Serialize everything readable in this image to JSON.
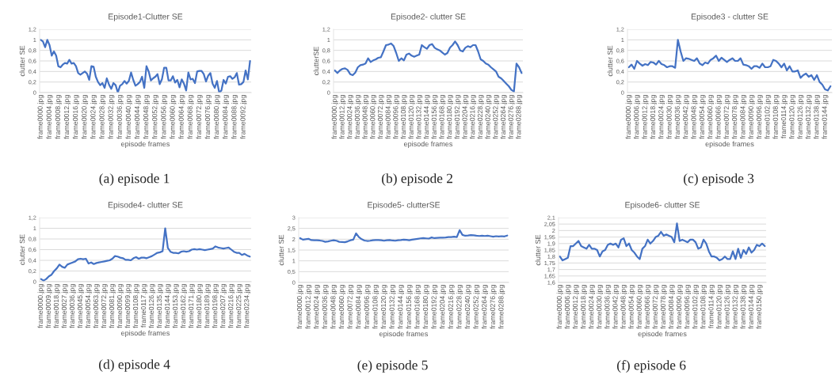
{
  "chart_data": [
    {
      "type": "line",
      "title": "Episode1-Clutter SE",
      "xlabel": "episode frames",
      "ylabel": "clutter SE",
      "annotations": [
        "(a) episode 1"
      ],
      "grid": "y",
      "ylim": [
        0,
        1.2
      ],
      "yticks": [
        0,
        {
          "value": 0.2,
          "label": "0,2"
        },
        {
          "value": 0.4,
          "label": "0,4"
        },
        {
          "value": 0.6,
          "label": "0,6"
        },
        {
          "value": 0.8,
          "label": "0,8"
        },
        1,
        {
          "value": 1.2,
          "label": "1,2"
        }
      ],
      "categories": [
        "frame0000.jpg",
        null,
        null,
        null,
        "frame0004.jpg",
        null,
        null,
        null,
        "frame0008.jpg",
        null,
        null,
        null,
        "frame0012.jpg",
        null,
        null,
        null,
        "frame0016.jpg",
        null,
        null,
        null,
        "frame0020.jpg",
        null,
        null,
        null,
        "frame0024.jpg",
        null,
        null,
        null,
        "frame0028.jpg",
        null,
        null,
        null,
        "frame0032.jpg",
        null,
        null,
        null,
        "frame0036.jpg",
        null,
        null,
        null,
        "frame0040.jpg",
        null,
        null,
        null,
        "frame0044.jpg",
        null,
        null,
        null,
        "frame0048.jpg",
        null,
        null,
        null,
        "frame0052.jpg",
        null,
        null,
        null,
        "frame0056.jpg",
        null,
        null,
        null,
        "frame0060.jpg",
        null,
        null,
        null,
        "frame0064.jpg",
        null,
        null,
        null,
        "frame0068.jpg",
        null,
        null,
        null,
        "frame0072.jpg",
        null,
        null,
        null,
        "frame0076.jpg",
        null,
        null,
        null,
        "frame0080.jpg",
        null,
        null,
        null,
        "frame0084.jpg",
        null,
        null,
        null,
        "frame0088.jpg",
        null,
        null,
        null,
        "frame0092.jpg",
        null,
        null,
        null
      ],
      "series": [
        {
          "color": "#4472c4",
          "values": [
            1.0,
            0.97,
            0.86,
            1.0,
            0.9,
            0.7,
            0.78,
            0.7,
            0.5,
            0.48,
            0.53,
            0.56,
            0.55,
            0.62,
            0.55,
            0.56,
            0.5,
            0.37,
            0.34,
            0.37,
            0.4,
            0.36,
            0.24,
            0.5,
            0.49,
            0.3,
            0.2,
            0.14,
            0.18,
            0.09,
            0.27,
            0.15,
            0.07,
            0.18,
            0.14,
            0.0,
            0.13,
            0.16,
            0.22,
            0.17,
            0.22,
            0.38,
            0.24,
            0.13,
            0.16,
            0.2,
            0.3,
            0.09,
            0.5,
            0.4,
            0.23,
            0.27,
            0.3,
            0.35,
            0.16,
            0.25,
            0.47,
            0.47,
            0.23,
            0.23,
            0.31,
            0.19,
            0.24,
            0.1,
            0.25,
            0.17,
            0.04,
            0.38,
            0.25,
            0.26,
            0.18,
            0.4,
            0.41,
            0.41,
            0.35,
            0.21,
            0.32,
            0.37,
            0.17,
            0.09,
            0.22,
            0.0,
            0.04,
            0.24,
            0.17,
            0.3,
            0.31,
            0.26,
            0.29,
            0.37,
            0.15,
            0.16,
            0.2,
            0.42,
            0.25,
            0.6
          ]
        }
      ]
    },
    {
      "type": "line",
      "title": "Episode2- clutter SE",
      "xlabel": "episode frames",
      "ylabel": "clutterSE",
      "annotations": [
        "(b) episode 2"
      ],
      "grid": "y",
      "ylim": [
        0,
        1.2
      ],
      "yticks": [
        0,
        {
          "value": 0.2,
          "label": "0,2"
        },
        {
          "value": 0.4,
          "label": "0,4"
        },
        {
          "value": 0.6,
          "label": "0,6"
        },
        {
          "value": 0.8,
          "label": "0,8"
        },
        1,
        {
          "value": 1.2,
          "label": "1,2"
        }
      ],
      "categories": [
        "frame0000.jpg",
        null,
        null,
        "frame0012.jpg",
        null,
        null,
        "frame0024.jpg",
        null,
        null,
        "frame0036.jpg",
        null,
        null,
        "frame0048.jpg",
        null,
        null,
        "frame0060.jpg",
        null,
        null,
        "frame0072.jpg",
        null,
        null,
        "frame0084.jpg",
        null,
        null,
        "frame0096.jpg",
        null,
        null,
        "frame0108.jpg",
        null,
        null,
        "frame0120.jpg",
        null,
        null,
        "frame0132.jpg",
        null,
        null,
        "frame0144.jpg",
        null,
        null,
        "frame0156.jpg",
        null,
        null,
        "frame0168.jpg",
        null,
        null,
        "frame0180.jpg",
        null,
        null,
        "frame0192.jpg",
        null,
        null,
        "frame0204.jpg",
        null,
        null,
        "frame0216.jpg",
        null,
        null,
        "frame0228.jpg",
        null,
        null,
        "frame0240.jpg",
        null,
        null,
        "frame0252.jpg",
        null,
        null,
        "frame0264.jpg",
        null,
        null,
        "frame0276.jpg",
        null,
        null,
        "frame0288.jpg",
        null
      ],
      "series": [
        {
          "color": "#4472c4",
          "values": [
            0.42,
            0.37,
            0.42,
            0.45,
            0.46,
            0.43,
            0.35,
            0.33,
            0.38,
            0.48,
            0.52,
            0.53,
            0.55,
            0.65,
            0.58,
            0.61,
            0.63,
            0.66,
            0.67,
            0.78,
            0.9,
            0.91,
            0.93,
            0.88,
            0.75,
            0.6,
            0.65,
            0.61,
            0.72,
            0.74,
            0.7,
            0.68,
            0.7,
            0.72,
            0.9,
            0.86,
            0.83,
            0.9,
            0.92,
            0.85,
            0.82,
            0.8,
            0.76,
            0.72,
            0.75,
            0.85,
            0.9,
            0.97,
            0.9,
            0.8,
            0.78,
            0.85,
            0.88,
            0.86,
            0.9,
            0.9,
            0.78,
            0.63,
            0.6,
            0.55,
            0.53,
            0.48,
            0.44,
            0.4,
            0.3,
            0.27,
            0.22,
            0.17,
            0.12,
            0.05,
            0.02,
            0.55,
            0.48,
            0.37
          ]
        }
      ]
    },
    {
      "type": "line",
      "title": "Episode3 - clutter SE",
      "xlabel": "episode frames",
      "ylabel": "clutter SE",
      "annotations": [
        "(c) episode 3"
      ],
      "grid": "y",
      "ylim": [
        0,
        1.2
      ],
      "yticks": [
        0,
        {
          "value": 0.2,
          "label": "0,2"
        },
        {
          "value": 0.4,
          "label": "0,4"
        },
        {
          "value": 0.6,
          "label": "0,6"
        },
        {
          "value": 0.8,
          "label": "0,8"
        },
        1,
        {
          "value": 1.2,
          "label": "1,2"
        }
      ],
      "categories": [
        "frame0000.jpg",
        null,
        null,
        "frame0006.jpg",
        null,
        null,
        "frame0012.jpg",
        null,
        null,
        "frame0018.jpg",
        null,
        null,
        "frame0024.jpg",
        null,
        null,
        "frame0030.jpg",
        null,
        null,
        "frame0036.jpg",
        null,
        null,
        "frame0042.jpg",
        null,
        null,
        "frame0048.jpg",
        null,
        null,
        "frame0054.jpg",
        null,
        null,
        "frame0060.jpg",
        null,
        null,
        "frame0066.jpg",
        null,
        null,
        "frame0072.jpg",
        null,
        null,
        "frame0078.jpg",
        null,
        null,
        "frame0084.jpg",
        null,
        null,
        "frame0090.jpg",
        null,
        null,
        "frame0096.jpg",
        null,
        null,
        "frame0102.jpg",
        null,
        null,
        "frame0108.jpg",
        null,
        null,
        "frame0114.jpg",
        null,
        null,
        "frame0120.jpg",
        null,
        null,
        "frame0126.jpg",
        null,
        null,
        "frame0132.jpg",
        null,
        null,
        "frame0138.jpg",
        null,
        null,
        "frame0144.jpg",
        null,
        null
      ],
      "series": [
        {
          "color": "#4472c4",
          "values": [
            0.48,
            0.53,
            0.45,
            0.6,
            0.55,
            0.51,
            0.54,
            0.52,
            0.58,
            0.57,
            0.53,
            0.6,
            0.54,
            0.52,
            0.48,
            0.5,
            0.5,
            0.47,
            1.0,
            0.78,
            0.6,
            0.65,
            0.64,
            0.62,
            0.6,
            0.65,
            0.55,
            0.52,
            0.57,
            0.55,
            0.62,
            0.65,
            0.7,
            0.6,
            0.66,
            0.62,
            0.58,
            0.62,
            0.65,
            0.6,
            0.6,
            0.65,
            0.53,
            0.52,
            0.5,
            0.45,
            0.5,
            0.5,
            0.47,
            0.55,
            0.48,
            0.48,
            0.5,
            0.62,
            0.6,
            0.55,
            0.48,
            0.55,
            0.42,
            0.5,
            0.4,
            0.4,
            0.42,
            0.28,
            0.33,
            0.36,
            0.3,
            0.33,
            0.24,
            0.33,
            0.2,
            0.15,
            0.06,
            0.04,
            0.12
          ]
        }
      ]
    },
    {
      "type": "line",
      "title": "Episode4- clutter SE",
      "xlabel": "episode frames",
      "ylabel": "clutter SE",
      "annotations": [
        "(d) episode 4"
      ],
      "grid": "y",
      "ylim": [
        0,
        1.2
      ],
      "yticks": [
        0,
        {
          "value": 0.2,
          "label": "0,2"
        },
        {
          "value": 0.4,
          "label": "0,4"
        },
        {
          "value": 0.6,
          "label": "0,6"
        },
        {
          "value": 0.8,
          "label": "0,8"
        },
        1,
        {
          "value": 1.2,
          "label": "1,2"
        }
      ],
      "categories": [
        "frame0000.jpg",
        null,
        null,
        "frame0009.jpg",
        null,
        null,
        "frame0018.jpg",
        null,
        null,
        "frame0027.jpg",
        null,
        null,
        "frame0036.jpg",
        null,
        null,
        "frame0045.jpg",
        null,
        null,
        "frame0054.jpg",
        null,
        null,
        "frame0063.jpg",
        null,
        null,
        "frame0072.jpg",
        null,
        null,
        "frame0081.jpg",
        null,
        null,
        "frame0090.jpg",
        null,
        null,
        "frame0099.jpg",
        null,
        null,
        "frame0108.jpg",
        null,
        null,
        "frame0117.jpg",
        null,
        null,
        "frame0126.jpg",
        null,
        null,
        "frame0135.jpg",
        null,
        null,
        "frame0144.jpg",
        null,
        null,
        "frame0153.jpg",
        null,
        null,
        "frame0162.jpg",
        null,
        null,
        "frame0171.jpg",
        null,
        null,
        "frame0180.jpg",
        null,
        null,
        "frame0189.jpg",
        null,
        null,
        "frame0198.jpg",
        null,
        null,
        "frame0207.jpg",
        null,
        null,
        "frame0216.jpg",
        null,
        null,
        "frame0225.jpg",
        null,
        null,
        "frame0234.jpg",
        null
      ],
      "series": [
        {
          "color": "#4472c4",
          "values": [
            0.05,
            0.02,
            0.05,
            0.1,
            0.13,
            0.2,
            0.25,
            0.32,
            0.28,
            0.26,
            0.32,
            0.34,
            0.36,
            0.38,
            0.42,
            0.43,
            0.42,
            0.43,
            0.34,
            0.36,
            0.33,
            0.35,
            0.36,
            0.37,
            0.38,
            0.39,
            0.4,
            0.43,
            0.48,
            0.47,
            0.45,
            0.44,
            0.41,
            0.41,
            0.4,
            0.44,
            0.46,
            0.43,
            0.45,
            0.45,
            0.44,
            0.46,
            0.48,
            0.51,
            0.54,
            0.55,
            0.57,
            1.0,
            0.63,
            0.56,
            0.54,
            0.54,
            0.53,
            0.56,
            0.57,
            0.56,
            0.57,
            0.6,
            0.61,
            0.6,
            0.61,
            0.6,
            0.59,
            0.6,
            0.61,
            0.62,
            0.66,
            0.64,
            0.63,
            0.62,
            0.63,
            0.64,
            0.6,
            0.56,
            0.54,
            0.54,
            0.5,
            0.52,
            0.49,
            0.47
          ]
        }
      ]
    },
    {
      "type": "line",
      "title": "Episode5- clutterSE",
      "xlabel": "episode frames",
      "ylabel": "clutter SE",
      "annotations": [
        "(e) episode 5"
      ],
      "grid": "y",
      "ylim": [
        0,
        3
      ],
      "yticks": [
        0,
        {
          "value": 0.5,
          "label": "0,5"
        },
        1,
        {
          "value": 1.5,
          "label": "1,5"
        },
        2,
        {
          "value": 2.5,
          "label": "2,5"
        },
        3
      ],
      "categories": [
        "frame0000.jpg",
        null,
        null,
        "frame0012.jpg",
        null,
        null,
        "frame0024.jpg",
        null,
        null,
        "frame0036.jpg",
        null,
        null,
        "frame0048.jpg",
        null,
        null,
        "frame0060.jpg",
        null,
        null,
        "frame0072.jpg",
        null,
        null,
        "frame0084.jpg",
        null,
        null,
        "frame0096.jpg",
        null,
        null,
        "frame0108.jpg",
        null,
        null,
        "frame0120.jpg",
        null,
        null,
        "frame0132.jpg",
        null,
        null,
        "frame0144.jpg",
        null,
        null,
        "frame0156.jpg",
        null,
        null,
        "frame0168.jpg",
        null,
        null,
        "frame0180.jpg",
        null,
        null,
        "frame0192.jpg",
        null,
        null,
        "frame0204.jpg",
        null,
        null,
        "frame0216.jpg",
        null,
        null,
        "frame0228.jpg",
        null,
        null,
        "frame0240.jpg",
        null,
        null,
        "frame0252.jpg",
        null,
        null,
        "frame0264.jpg",
        null,
        null,
        "frame0276.jpg",
        null,
        null,
        "frame0288.jpg",
        null,
        null
      ],
      "series": [
        {
          "color": "#4472c4",
          "values": [
            2.05,
            1.98,
            2.0,
            2.02,
            1.96,
            1.95,
            1.95,
            1.94,
            1.92,
            1.88,
            1.9,
            1.93,
            1.95,
            1.93,
            1.88,
            1.87,
            1.86,
            1.9,
            1.95,
            1.98,
            2.27,
            2.1,
            2.0,
            1.94,
            1.92,
            1.93,
            1.95,
            1.96,
            1.96,
            1.95,
            1.93,
            1.95,
            1.96,
            1.94,
            1.93,
            1.95,
            1.96,
            1.98,
            1.97,
            1.95,
            1.98,
            2.0,
            2.02,
            2.04,
            2.05,
            2.04,
            2.03,
            2.08,
            2.05,
            2.06,
            2.07,
            2.07,
            2.08,
            2.1,
            2.1,
            2.12,
            2.1,
            2.42,
            2.2,
            2.16,
            2.17,
            2.19,
            2.18,
            2.16,
            2.15,
            2.16,
            2.15,
            2.16,
            2.14,
            2.12,
            2.14,
            2.13,
            2.14,
            2.13,
            2.17
          ]
        }
      ]
    },
    {
      "type": "line",
      "title": "Episode6- clutter SE",
      "xlabel": "episode frames",
      "ylabel": "clutter SE",
      "annotations": [
        "(f) episode 6"
      ],
      "grid": "y",
      "ylim": [
        1.6,
        2.1
      ],
      "yticks": [
        {
          "value": 1.6,
          "label": "1,6"
        },
        {
          "value": 1.65,
          "label": "1,65"
        },
        {
          "value": 1.7,
          "label": "1,7"
        },
        {
          "value": 1.75,
          "label": "1,75"
        },
        {
          "value": 1.8,
          "label": "1,8"
        },
        {
          "value": 1.85,
          "label": "1,85"
        },
        {
          "value": 1.9,
          "label": "1,9"
        },
        {
          "value": 1.95,
          "label": "1,95"
        },
        2,
        {
          "value": 2.05,
          "label": "2,05"
        },
        {
          "value": 2.1,
          "label": "2,1"
        }
      ],
      "categories": [
        "frame0000.jpg",
        null,
        null,
        "frame0006.jpg",
        null,
        null,
        "frame0012.jpg",
        null,
        null,
        "frame0018.jpg",
        null,
        null,
        "frame0024.jpg",
        null,
        null,
        "frame0030.jpg",
        null,
        null,
        "frame0036.jpg",
        null,
        null,
        "frame0042.jpg",
        null,
        null,
        "frame0048.jpg",
        null,
        null,
        "frame0054.jpg",
        null,
        null,
        "frame0060.jpg",
        null,
        null,
        "frame0066.jpg",
        null,
        null,
        "frame0072.jpg",
        null,
        null,
        "frame0078.jpg",
        null,
        null,
        "frame0084.jpg",
        null,
        null,
        "frame0090.jpg",
        null,
        null,
        "frame0096.jpg",
        null,
        null,
        "frame0102.jpg",
        null,
        null,
        "frame0108.jpg",
        null,
        null,
        "frame0114.jpg",
        null,
        null,
        "frame0120.jpg",
        null,
        null,
        "frame0126.jpg",
        null,
        null,
        "frame0132.jpg",
        null,
        null,
        "frame0138.jpg",
        null,
        null,
        "frame0144.jpg",
        null,
        null,
        "frame0150.jpg",
        null,
        null
      ],
      "series": [
        {
          "color": "#4472c4",
          "values": [
            1.8,
            1.77,
            1.78,
            1.79,
            1.88,
            1.88,
            1.9,
            1.92,
            1.88,
            1.87,
            1.86,
            1.89,
            1.86,
            1.86,
            1.85,
            1.8,
            1.84,
            1.85,
            1.89,
            1.9,
            1.89,
            1.9,
            1.87,
            1.93,
            1.94,
            1.88,
            1.9,
            1.85,
            1.83,
            1.8,
            1.78,
            1.86,
            1.88,
            1.93,
            1.9,
            1.92,
            1.95,
            1.96,
            1.99,
            1.96,
            1.97,
            1.96,
            1.95,
            1.91,
            2.055,
            1.92,
            1.93,
            1.92,
            1.91,
            1.93,
            1.93,
            1.91,
            1.86,
            1.87,
            1.93,
            1.9,
            1.84,
            1.8,
            1.8,
            1.79,
            1.77,
            1.78,
            1.8,
            1.78,
            1.78,
            1.84,
            1.78,
            1.86,
            1.79,
            1.85,
            1.82,
            1.87,
            1.83,
            1.85,
            1.89,
            1.88,
            1.9,
            1.88
          ]
        }
      ]
    }
  ]
}
